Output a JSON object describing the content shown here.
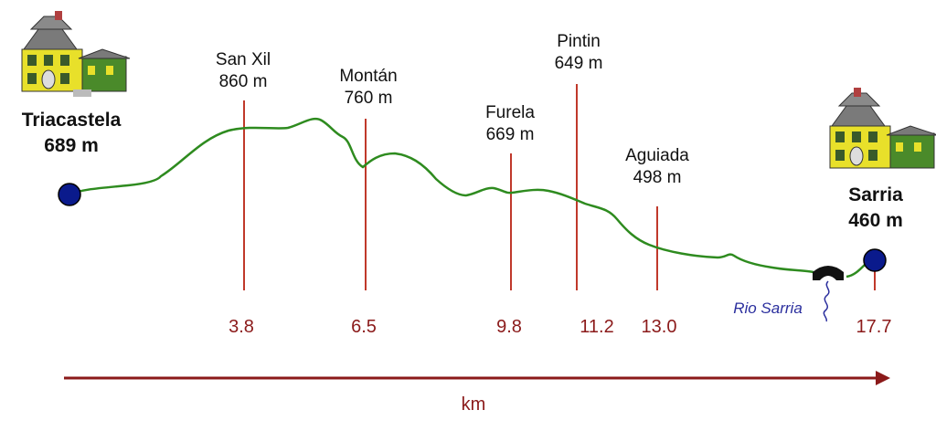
{
  "colors": {
    "profile": "#2e8b1f",
    "marker": "#c0392b",
    "km_text": "#8b1a1a",
    "axis": "#8b1a1a",
    "endpoint_fill": "#0a1a8c",
    "river": "#2b2f9e",
    "house_yellow": "#e8e02a",
    "house_green": "#4a8a2a",
    "house_roof": "#7a7a7a"
  },
  "start": {
    "name": "Triacastela",
    "elevation": "689 m",
    "icon": "house-icon"
  },
  "end": {
    "name": "Sarria",
    "elevation": "460 m",
    "icon": "house-icon"
  },
  "waypoints": [
    {
      "name": "San Xil",
      "elevation": "860 m",
      "km": "3.8"
    },
    {
      "name": "Montán",
      "elevation": "760 m",
      "km": "6.5"
    },
    {
      "name": "Furela",
      "elevation": "669 m",
      "km": "9.8"
    },
    {
      "name": "Pintin",
      "elevation": "649 m",
      "km": "11.2"
    },
    {
      "name": "Aguiada",
      "elevation": "498 m",
      "km": "13.0"
    }
  ],
  "end_km": "17.7",
  "river": {
    "name": "Rio Sarria",
    "icon": "bridge-icon"
  },
  "axis": {
    "label": "km"
  }
}
